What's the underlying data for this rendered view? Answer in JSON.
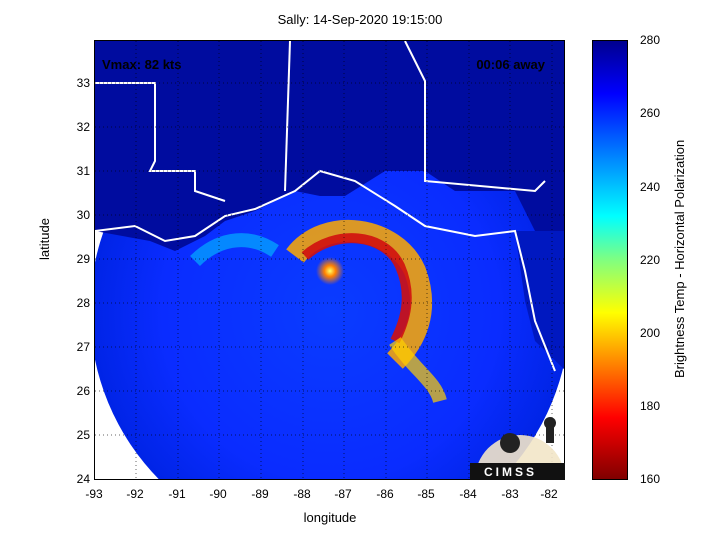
{
  "title": "Sally: 14-Sep-2020 19:15:00",
  "overlay": {
    "vmax": "Vmax: 82 kts",
    "time_away": "00:06 away"
  },
  "axes": {
    "xlabel": "longitude",
    "ylabel": "latitude",
    "x_ticks": [
      "-93",
      "-92",
      "-91",
      "-90",
      "-89",
      "-88",
      "-87",
      "-86",
      "-85",
      "-84",
      "-83",
      "-82"
    ],
    "y_ticks": [
      "33",
      "32",
      "31",
      "30",
      "29",
      "28",
      "27",
      "26",
      "25",
      "24"
    ],
    "xlim": [
      -93,
      -81.7
    ],
    "ylim": [
      24,
      34
    ]
  },
  "colorbar": {
    "label": "Brightness Temp - Horizontal Polarization",
    "ticks": [
      "280",
      "260",
      "240",
      "220",
      "200",
      "180",
      "160"
    ],
    "range": [
      160,
      280
    ]
  },
  "logo": {
    "text": "CIMSS"
  },
  "colors": {
    "background_cold": "#00008f",
    "swath_blue": "#0a2cff",
    "core_red": "#800000"
  }
}
